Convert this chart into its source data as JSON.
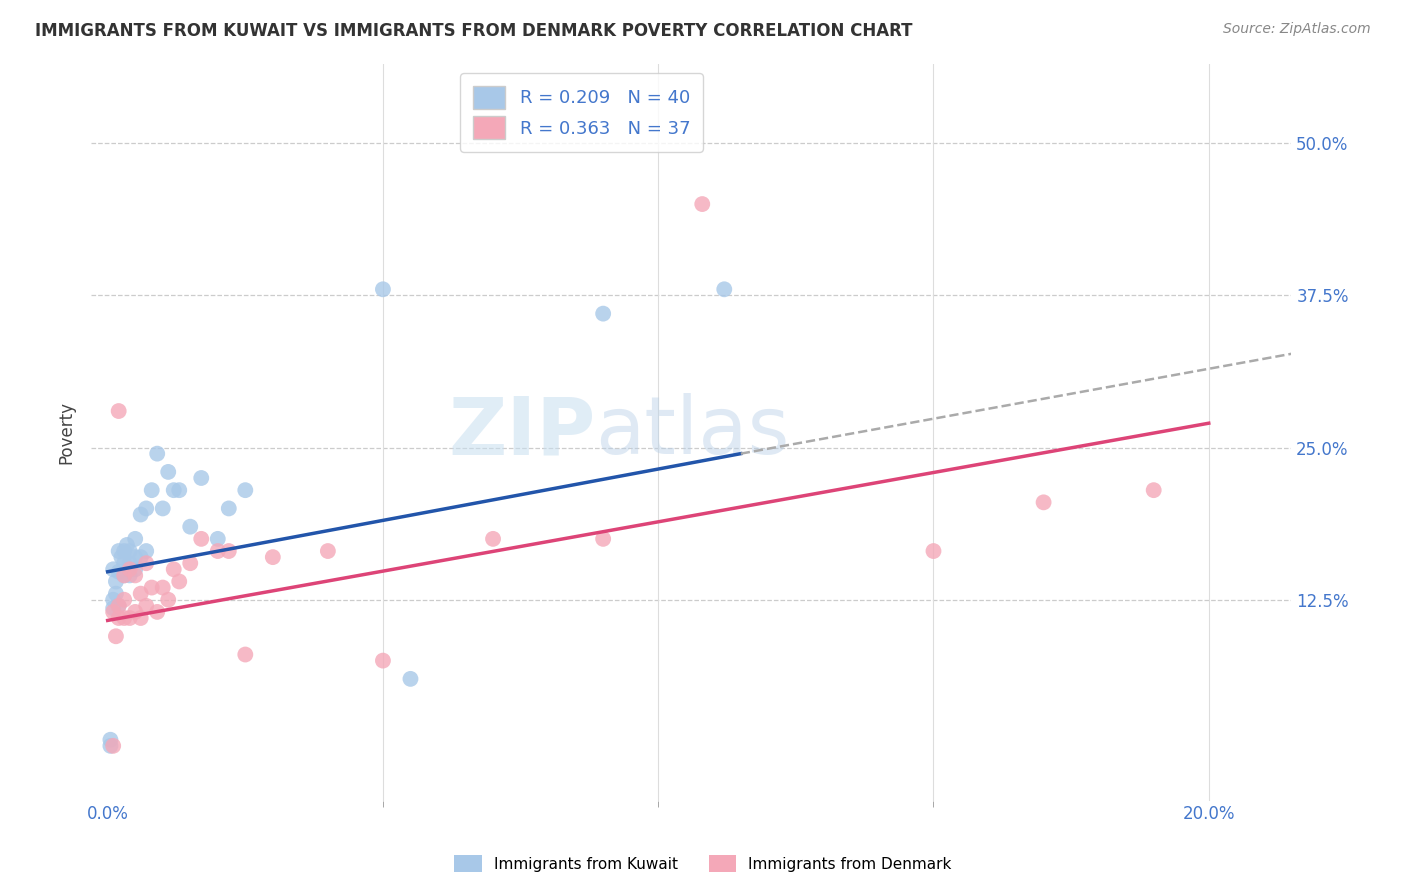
{
  "title": "IMMIGRANTS FROM KUWAIT VS IMMIGRANTS FROM DENMARK POVERTY CORRELATION CHART",
  "source": "Source: ZipAtlas.com",
  "ylabel_label": "Poverty",
  "ytick_labels": [
    "12.5%",
    "25.0%",
    "37.5%",
    "50.0%"
  ],
  "ytick_values": [
    0.125,
    0.25,
    0.375,
    0.5
  ],
  "xtick_labels": [
    "0.0%",
    "20.0%"
  ],
  "xtick_positions": [
    0.0,
    0.2
  ],
  "xlim": [
    -0.003,
    0.215
  ],
  "ylim": [
    -0.04,
    0.565
  ],
  "kuwait_color": "#a8c8e8",
  "denmark_color": "#f4a8b8",
  "kuwait_line_color": "#2255aa",
  "denmark_line_color": "#dd4477",
  "dash_line_color": "#aaaaaa",
  "legend_line1": "R = 0.209   N = 40",
  "legend_line2": "R = 0.363   N = 37",
  "legend_label_kuwait": "Immigrants from Kuwait",
  "legend_label_denmark": "Immigrants from Denmark",
  "watermark": "ZIPatlas",
  "kuwait_line_x0": 0.0,
  "kuwait_line_y0": 0.148,
  "kuwait_line_x1": 0.115,
  "kuwait_line_y1": 0.245,
  "denmark_line_x0": 0.0,
  "denmark_line_y0": 0.108,
  "denmark_line_x1": 0.2,
  "denmark_line_y1": 0.27,
  "dash_line_x0": 0.115,
  "dash_line_y0": 0.245,
  "dash_line_x1": 0.215,
  "dash_line_y1": 0.327,
  "kuwait_x": [
    0.0005,
    0.0005,
    0.001,
    0.001,
    0.001,
    0.0015,
    0.0015,
    0.002,
    0.002,
    0.002,
    0.0025,
    0.003,
    0.003,
    0.003,
    0.0035,
    0.004,
    0.004,
    0.004,
    0.005,
    0.005,
    0.005,
    0.006,
    0.006,
    0.007,
    0.007,
    0.008,
    0.009,
    0.01,
    0.011,
    0.012,
    0.013,
    0.015,
    0.017,
    0.02,
    0.022,
    0.025,
    0.05,
    0.055,
    0.09,
    0.112
  ],
  "kuwait_y": [
    0.005,
    0.01,
    0.118,
    0.125,
    0.15,
    0.13,
    0.14,
    0.12,
    0.148,
    0.165,
    0.16,
    0.145,
    0.155,
    0.165,
    0.17,
    0.145,
    0.155,
    0.165,
    0.15,
    0.16,
    0.175,
    0.16,
    0.195,
    0.165,
    0.2,
    0.215,
    0.245,
    0.2,
    0.23,
    0.215,
    0.215,
    0.185,
    0.225,
    0.175,
    0.2,
    0.215,
    0.38,
    0.06,
    0.36,
    0.38
  ],
  "denmark_x": [
    0.001,
    0.001,
    0.0015,
    0.002,
    0.002,
    0.002,
    0.003,
    0.003,
    0.003,
    0.004,
    0.004,
    0.005,
    0.005,
    0.006,
    0.006,
    0.007,
    0.007,
    0.008,
    0.009,
    0.01,
    0.011,
    0.012,
    0.013,
    0.015,
    0.017,
    0.02,
    0.022,
    0.025,
    0.03,
    0.04,
    0.05,
    0.07,
    0.09,
    0.108,
    0.15,
    0.17,
    0.19
  ],
  "denmark_y": [
    0.005,
    0.115,
    0.095,
    0.11,
    0.12,
    0.28,
    0.11,
    0.125,
    0.145,
    0.11,
    0.15,
    0.115,
    0.145,
    0.11,
    0.13,
    0.12,
    0.155,
    0.135,
    0.115,
    0.135,
    0.125,
    0.15,
    0.14,
    0.155,
    0.175,
    0.165,
    0.165,
    0.08,
    0.16,
    0.165,
    0.075,
    0.175,
    0.175,
    0.45,
    0.165,
    0.205,
    0.215
  ]
}
